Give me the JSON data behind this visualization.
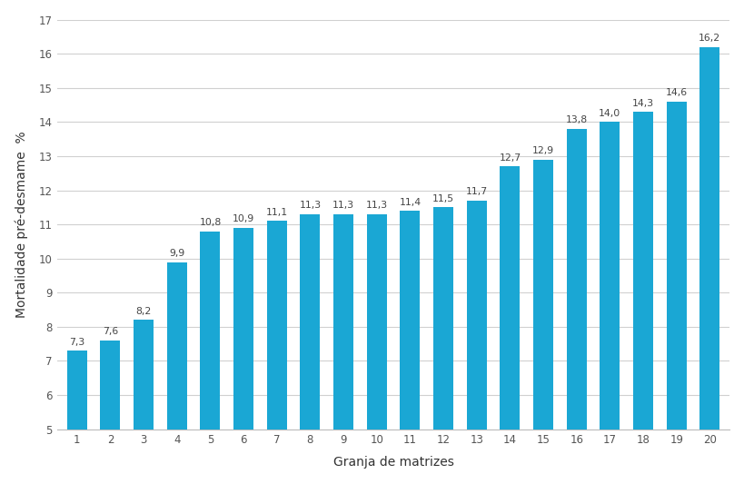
{
  "categories": [
    "1",
    "2",
    "3",
    "4",
    "5",
    "6",
    "7",
    "8",
    "9",
    "10",
    "11",
    "12",
    "13",
    "14",
    "15",
    "16",
    "17",
    "18",
    "19",
    "20"
  ],
  "values": [
    7.3,
    7.6,
    8.2,
    9.9,
    10.8,
    10.9,
    11.1,
    11.3,
    11.3,
    11.3,
    11.4,
    11.5,
    11.7,
    12.7,
    12.9,
    13.8,
    14.0,
    14.3,
    14.6,
    16.2
  ],
  "bar_color": "#1aa7d4",
  "xlabel": "Granja de matrizes",
  "ylabel": "Mortalidade pré-desmame  %",
  "ylim": [
    5,
    17
  ],
  "ybase": 5,
  "yticks": [
    5,
    6,
    7,
    8,
    9,
    10,
    11,
    12,
    13,
    14,
    15,
    16,
    17
  ],
  "background_color": "#ffffff",
  "grid_color": "#d0d0d0",
  "label_fontsize": 8.5,
  "axis_label_fontsize": 10,
  "bar_label_fontsize": 7.8
}
